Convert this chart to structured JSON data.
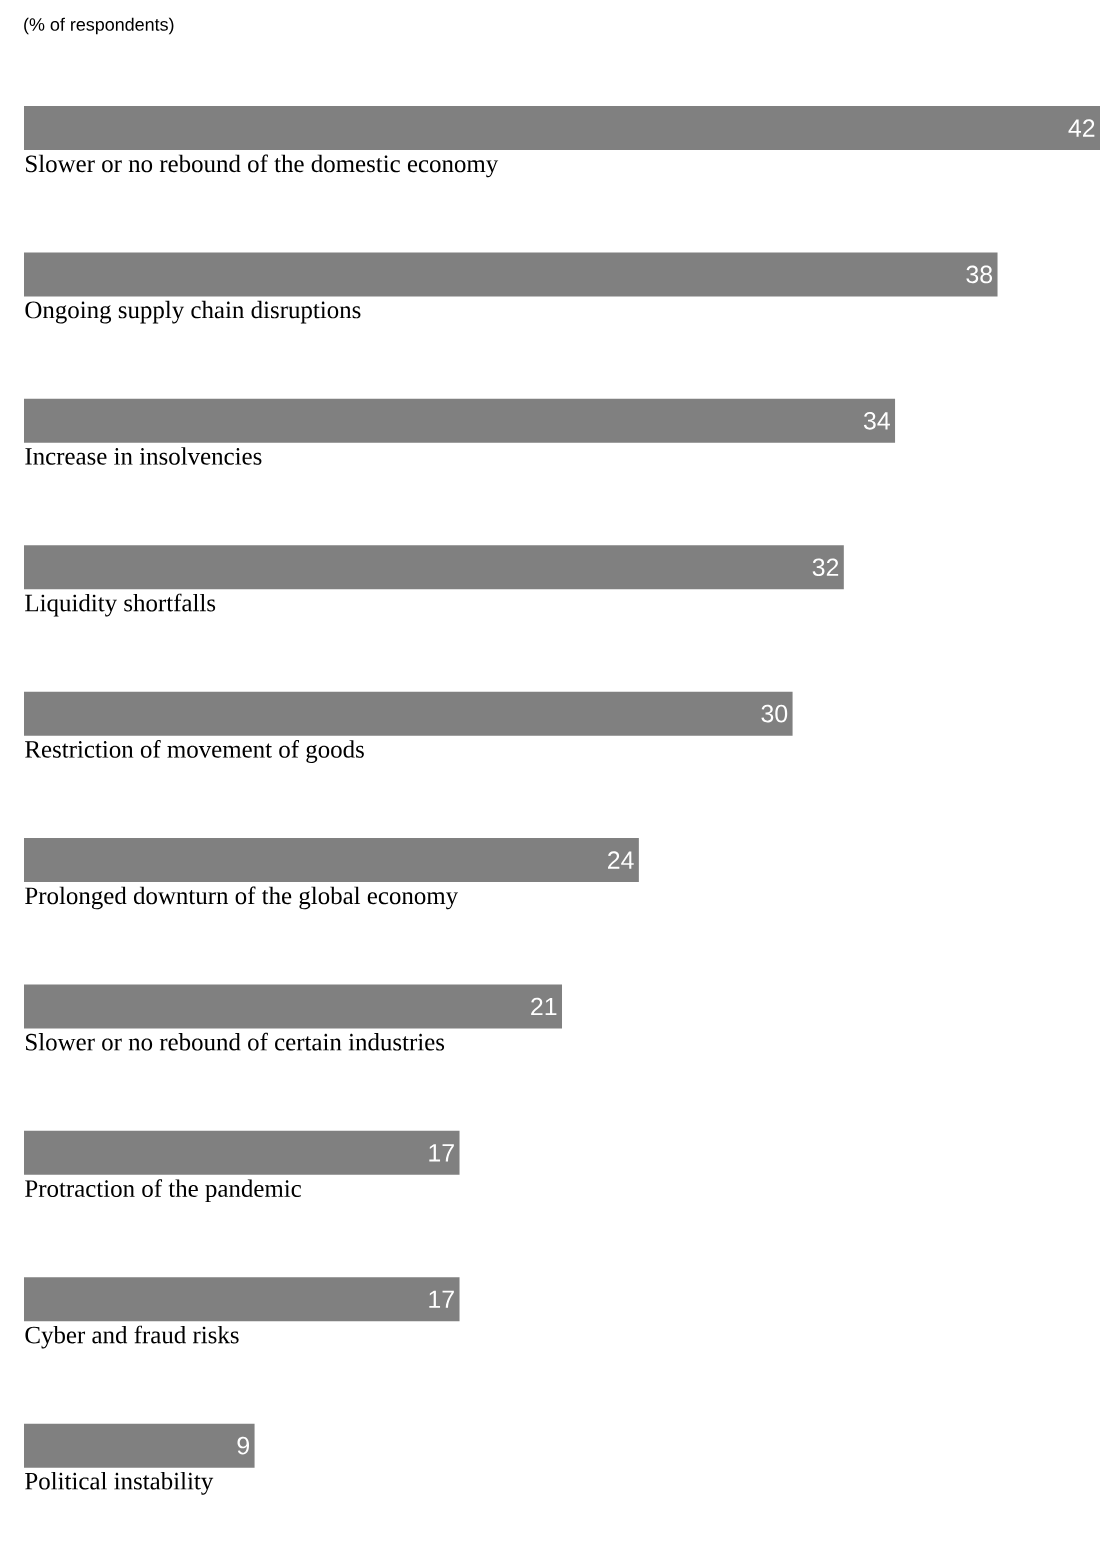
{
  "chart_data": {
    "type": "bar",
    "orientation": "horizontal",
    "subtitle": "(% of respondents)",
    "categories": [
      "Slower or no rebound of the domestic economy",
      "Ongoing supply chain disruptions",
      "Increase in insolvencies",
      "Liquidity shortfalls",
      "Restriction of movement of goods",
      "Prolonged downturn of the global economy",
      "Slower or no rebound of certain industries",
      "Protraction of the pandemic",
      "Cyber and fraud risks",
      "Political instability"
    ],
    "values": [
      42,
      38,
      34,
      32,
      30,
      24,
      21,
      17,
      17,
      9
    ],
    "color": "#808080",
    "data_labels": true
  }
}
